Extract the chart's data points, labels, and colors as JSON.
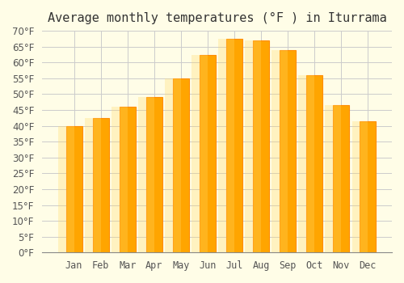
{
  "title": "Average monthly temperatures (°F ) in Iturrama",
  "months": [
    "Jan",
    "Feb",
    "Mar",
    "Apr",
    "May",
    "Jun",
    "Jul",
    "Aug",
    "Sep",
    "Oct",
    "Nov",
    "Dec"
  ],
  "values": [
    40,
    42.5,
    46,
    49,
    55,
    62.5,
    67.5,
    67,
    64,
    56,
    46.5,
    41.5
  ],
  "bar_color": "#FFA500",
  "bar_edge_color": "#FF8C00",
  "background_color": "#FFFDE7",
  "grid_color": "#CCCCCC",
  "ylim": [
    0,
    70
  ],
  "yticks": [
    0,
    5,
    10,
    15,
    20,
    25,
    30,
    35,
    40,
    45,
    50,
    55,
    60,
    65,
    70
  ],
  "title_fontsize": 11,
  "tick_fontsize": 8.5
}
